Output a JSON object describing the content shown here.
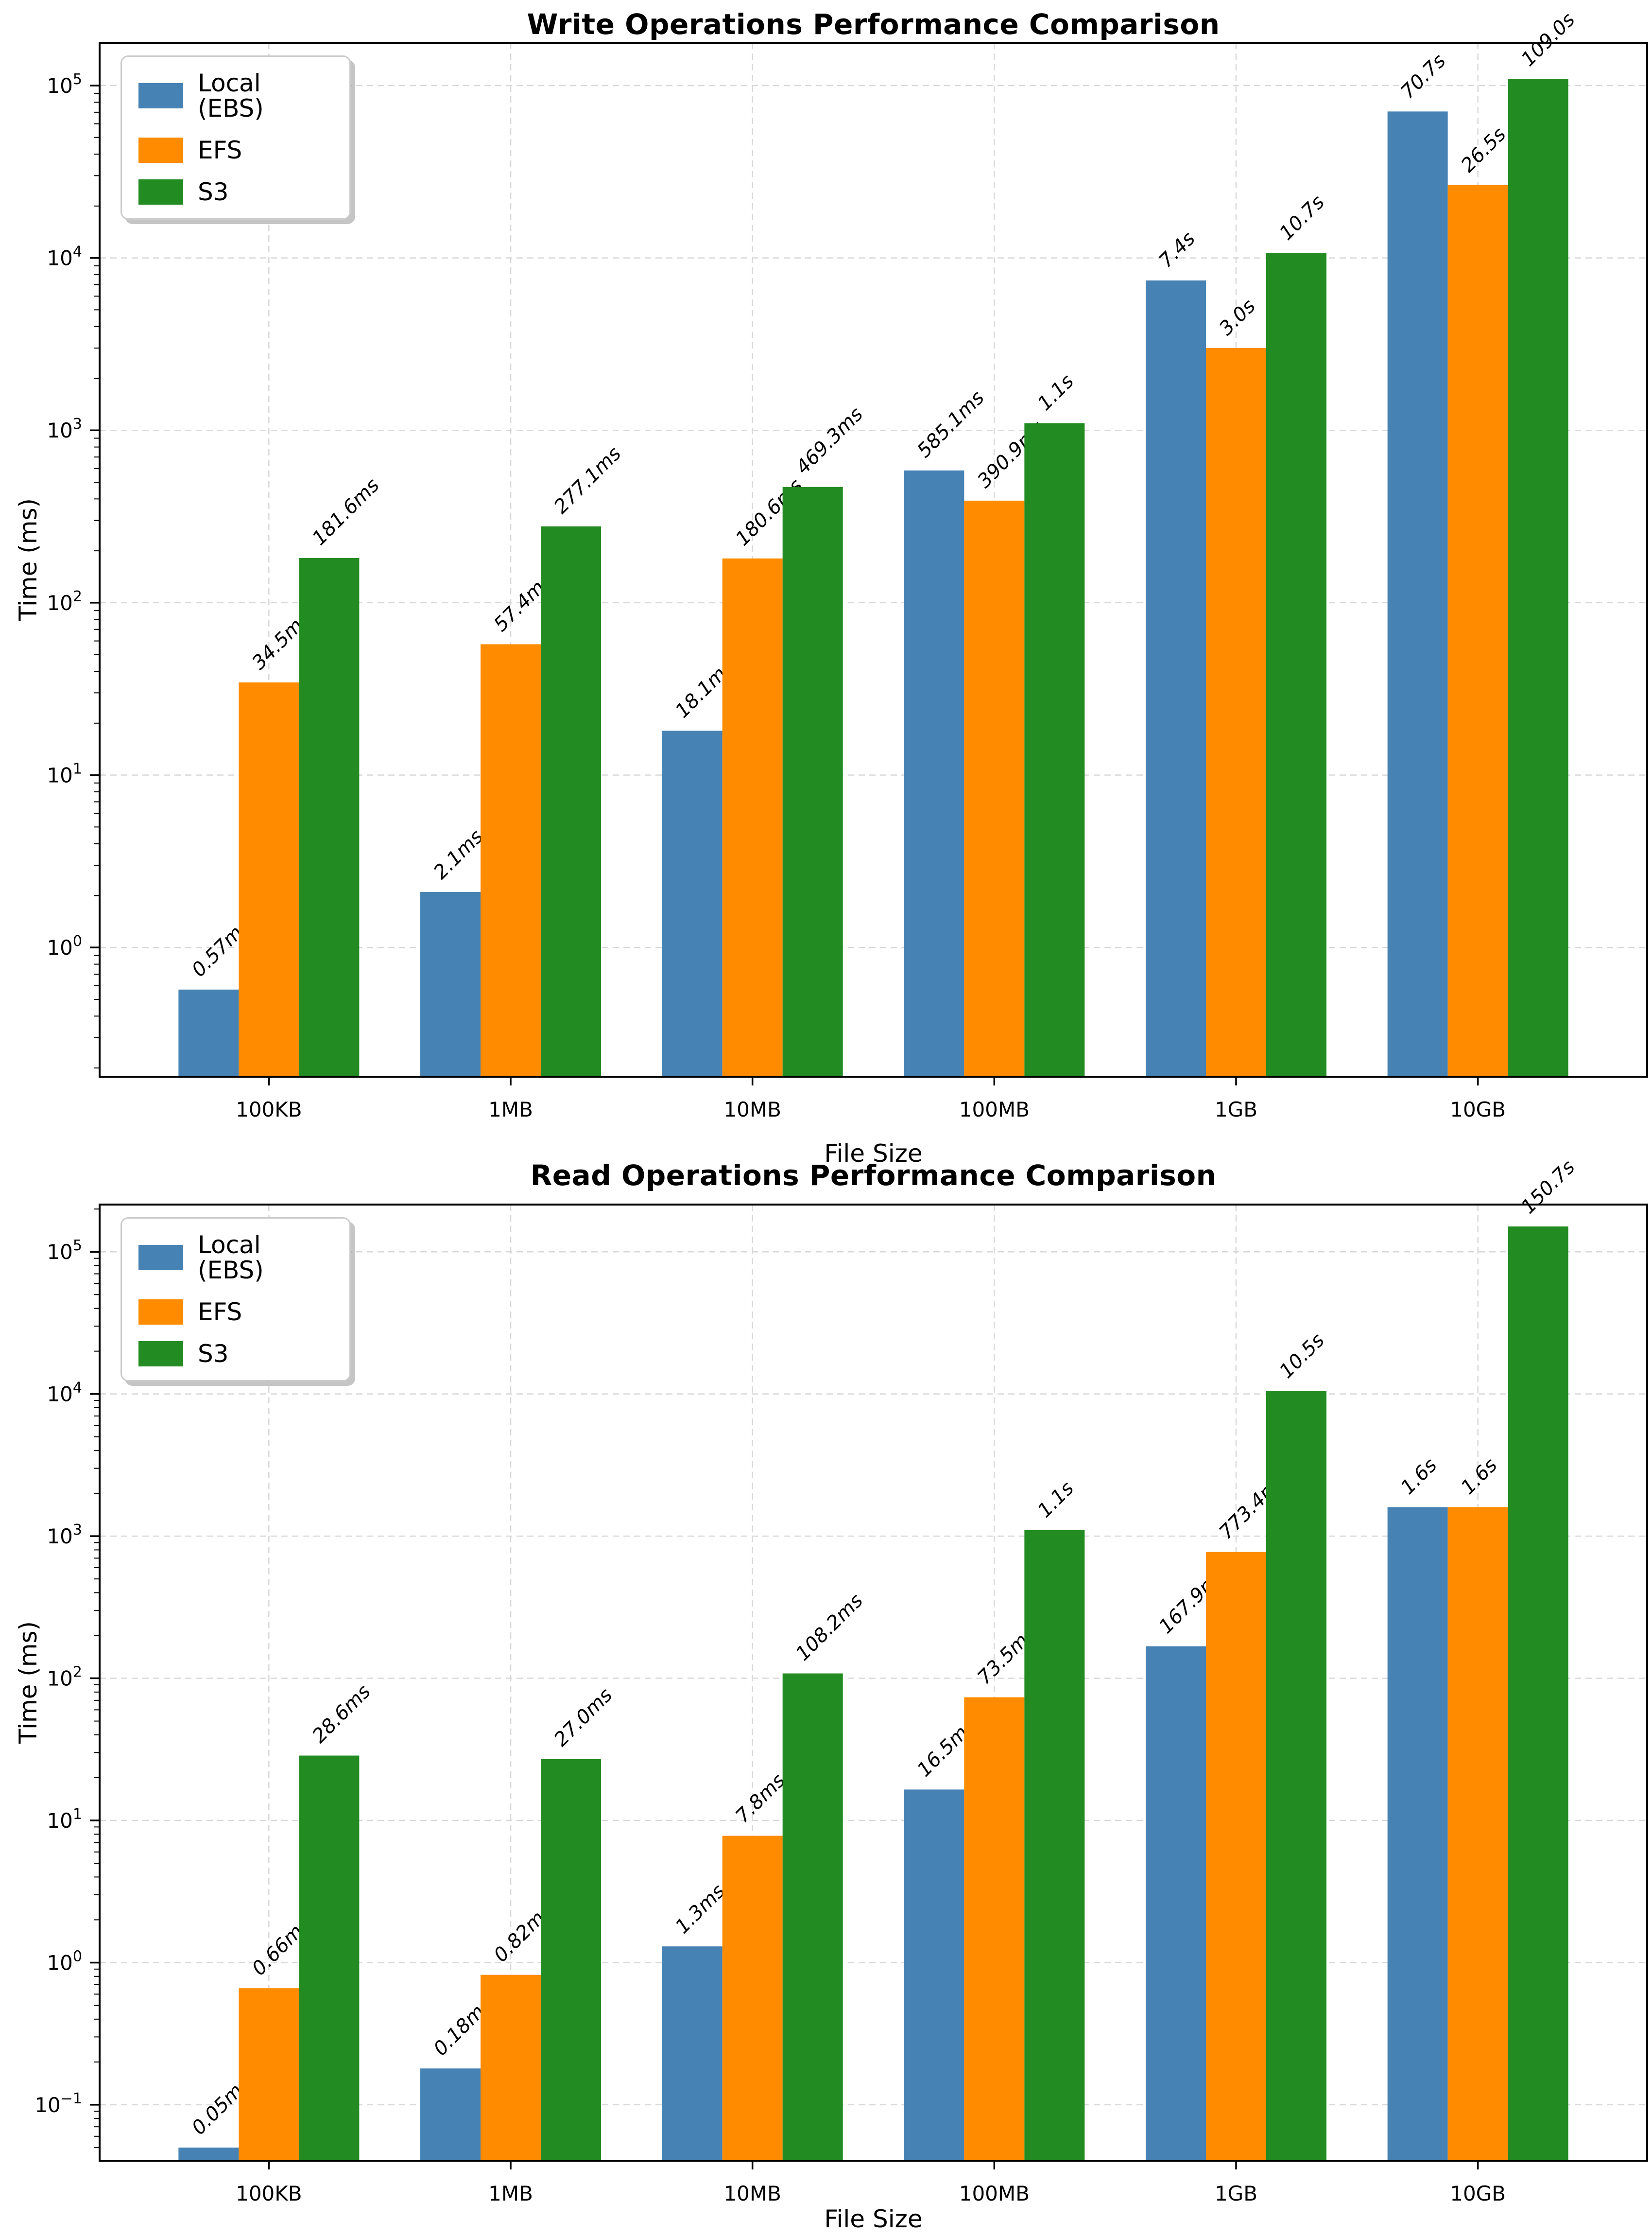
{
  "figure": {
    "background": "#ffffff"
  },
  "colors": {
    "local_ebs": "#4682B4",
    "efs": "#FF8C00",
    "s3": "#228B22",
    "grid": "#D8D8D8",
    "spine": "#000000",
    "legend_border": "#CCCCCC"
  },
  "legend": {
    "items": [
      {
        "label": "Local (EBS)",
        "color": "#4682B4"
      },
      {
        "label": "EFS",
        "color": "#FF8C00"
      },
      {
        "label": "S3",
        "color": "#228B22"
      }
    ]
  },
  "chart_data": [
    {
      "type": "bar",
      "title": "Write Operations Performance Comparison",
      "xlabel": "File Size",
      "ylabel": "Time (ms)",
      "yscale": "log",
      "grid": true,
      "legend_position": "upper-left",
      "categories": [
        "100KB",
        "1MB",
        "10MB",
        "100MB",
        "1GB",
        "10GB"
      ],
      "ylim": [
        0.178,
        177000
      ],
      "ytick_exponents": [
        0,
        1,
        2,
        3,
        4,
        5
      ],
      "series": [
        {
          "name": "Local (EBS)",
          "color": "#4682B4",
          "values": [
            0.57,
            2.1,
            18.1,
            585.1,
            7400,
            70700
          ],
          "labels": [
            "0.57ms",
            "2.1ms",
            "18.1ms",
            "585.1ms",
            "7.4s",
            "70.7s"
          ]
        },
        {
          "name": "EFS",
          "color": "#FF8C00",
          "values": [
            34.5,
            57.4,
            180.6,
            390.9,
            3000,
            26500
          ],
          "labels": [
            "34.5ms",
            "57.4ms",
            "180.6ms",
            "390.9ms",
            "3.0s",
            "26.5s"
          ]
        },
        {
          "name": "S3",
          "color": "#228B22",
          "values": [
            181.6,
            277.1,
            469.3,
            1100,
            10700,
            109000
          ],
          "labels": [
            "181.6ms",
            "277.1ms",
            "469.3ms",
            "1.1s",
            "10.7s",
            "109.0s"
          ]
        }
      ]
    },
    {
      "type": "bar",
      "title": "Read Operations Performance Comparison",
      "xlabel": "File Size",
      "ylabel": "Time (ms)",
      "yscale": "log",
      "grid": true,
      "legend_position": "upper-left",
      "categories": [
        "100KB",
        "1MB",
        "10MB",
        "100MB",
        "1GB",
        "10GB"
      ],
      "ylim": [
        0.0404,
        215000
      ],
      "ytick_exponents": [
        -1,
        0,
        1,
        2,
        3,
        4,
        5
      ],
      "series": [
        {
          "name": "Local (EBS)",
          "color": "#4682B4",
          "values": [
            0.05,
            0.18,
            1.3,
            16.5,
            167.9,
            1600
          ],
          "labels": [
            "0.05ms",
            "0.18ms",
            "1.3ms",
            "16.5ms",
            "167.9ms",
            "1.6s"
          ]
        },
        {
          "name": "EFS",
          "color": "#FF8C00",
          "values": [
            0.66,
            0.82,
            7.8,
            73.5,
            773.4,
            1600
          ],
          "labels": [
            "0.66ms",
            "0.82ms",
            "7.8ms",
            "73.5ms",
            "773.4ms",
            "1.6s"
          ]
        },
        {
          "name": "S3",
          "color": "#228B22",
          "values": [
            28.6,
            27.0,
            108.2,
            1100,
            10500,
            150700
          ],
          "labels": [
            "28.6ms",
            "27.0ms",
            "108.2ms",
            "1.1s",
            "10.5s",
            "150.7s"
          ]
        }
      ]
    }
  ]
}
